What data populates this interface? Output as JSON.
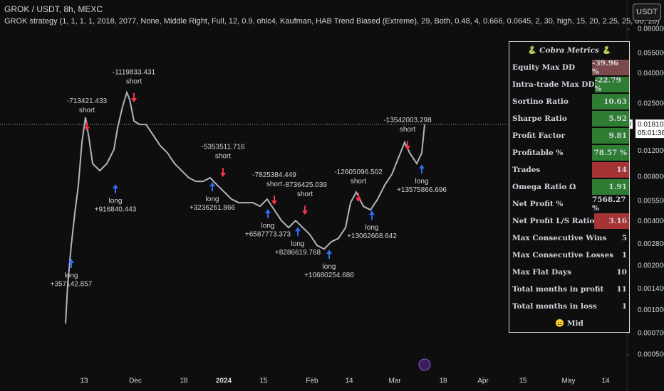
{
  "header": {
    "symbol": "GROK / USDT, 8h, MEXC",
    "strategy": "GROK strategy (1, 1, 1, 1, 2018, 2077, None, Middle Right, Full, 12, 0.9, ohlc4, Kaufman, HAB Trend Biased (Extreme), 29, Both, 0.48, 4, 0.666, 0.0645, 2, 30, high, 15, 20, 2.25, 25, 80, 20)",
    "currency_button": "USDT"
  },
  "chart_data": {
    "type": "line",
    "log_scale": true,
    "x": [
      -6.5,
      -5.75,
      -4.5,
      -3.25,
      -2,
      -0.75,
      0.5,
      1.75,
      3,
      5.5,
      8,
      10.5,
      11.75,
      13.5,
      15,
      16,
      17.5,
      19.5,
      21.75,
      24.25,
      26.75,
      29.25,
      31.75,
      34.25,
      36.75,
      39.25,
      41.75,
      44.25,
      46.75,
      49.25,
      51.75,
      54.25,
      56.75,
      59.25,
      61.75,
      64.25,
      66.75,
      69.25,
      71.75,
      74.25,
      76.75,
      79.25,
      81.75,
      84.25,
      86.75,
      89.25,
      91.75,
      93.5,
      95.5,
      98,
      100.5,
      103,
      105.5,
      108,
      110.5,
      112.5,
      114.25,
      116.75,
      118.5,
      119.5
    ],
    "series": [
      {
        "name": "GROKUSDT",
        "color": "#b2b5be",
        "values": [
          0.000812,
          0.00149,
          0.00275,
          0.00454,
          0.00704,
          0.01372,
          0.0202,
          0.01451,
          0.00985,
          0.00881,
          0.00985,
          0.01228,
          0.01713,
          0.0239,
          0.0298,
          0.0267,
          0.01914,
          0.0181,
          0.0181,
          0.01534,
          0.01298,
          0.01162,
          0.00985,
          0.00881,
          0.00789,
          0.00746,
          0.00746,
          0.00789,
          0.00704,
          0.00631,
          0.00565,
          0.00535,
          0.00535,
          0.00535,
          0.00506,
          0.00565,
          0.00478,
          0.00405,
          0.00363,
          0.00405,
          0.00363,
          0.00325,
          0.00275,
          0.0026,
          0.00291,
          0.00307,
          0.00363,
          0.00535,
          0.00631,
          0.00506,
          0.00478,
          0.00565,
          0.00704,
          0.00833,
          0.01099,
          0.01372,
          0.01162,
          0.00985,
          0.01162,
          0.0181
        ]
      }
    ],
    "xlim": [
      -29.5,
      188
    ],
    "xticks": [
      {
        "value": 0,
        "label": "13"
      },
      {
        "value": 18,
        "label": "Dec"
      },
      {
        "value": 35,
        "label": "18"
      },
      {
        "value": 49,
        "label": "2024"
      },
      {
        "value": 63,
        "label": "15"
      },
      {
        "value": 80,
        "label": "Feb"
      },
      {
        "value": 93,
        "label": "14"
      },
      {
        "value": 109,
        "label": "Mar"
      },
      {
        "value": 126,
        "label": "18"
      },
      {
        "value": 140,
        "label": "Apr"
      },
      {
        "value": 154,
        "label": "15"
      },
      {
        "value": 170,
        "label": "May"
      },
      {
        "value": 183,
        "label": "14"
      }
    ],
    "ylim": [
      0.000355,
      0.126
    ],
    "yticks": [
      {
        "value": 0.08,
        "label": "0.080000"
      },
      {
        "value": 0.055,
        "label": "0.055000"
      },
      {
        "value": 0.04,
        "label": "0.040000"
      },
      {
        "value": 0.025,
        "label": "0.025000"
      },
      {
        "value": 0.012,
        "label": "0.012000"
      },
      {
        "value": 0.008,
        "label": "0.008000"
      },
      {
        "value": 0.0055,
        "label": "0.005500"
      },
      {
        "value": 0.004,
        "label": "0.004000"
      },
      {
        "value": 0.0028,
        "label": "0.002800"
      },
      {
        "value": 0.002,
        "label": "0.002000"
      },
      {
        "value": 0.0014,
        "label": "0.001400"
      },
      {
        "value": 0.001,
        "label": "0.001000"
      },
      {
        "value": 0.0007,
        "label": "0.000700"
      },
      {
        "value": 0.0005,
        "label": "0.000500"
      }
    ],
    "last_price": 0.018103,
    "last_price_tag": "GROKUSDT",
    "last_price_timer": "05:01:36",
    "trades": [
      {
        "side": "long",
        "label": "+357142.857",
        "x": -4.5,
        "y": 0.00209
      },
      {
        "side": "short",
        "label": "-713421.433",
        "x": 1,
        "y": 0.0175
      },
      {
        "side": "long",
        "label": "+916840.443",
        "x": 11,
        "y": 0.00668
      },
      {
        "side": "short",
        "label": "-1119833.431",
        "x": 17.5,
        "y": 0.0273
      },
      {
        "side": "long",
        "label": "+3236261.866",
        "x": 45,
        "y": 0.0069
      },
      {
        "side": "short",
        "label": "-5353511.716",
        "x": 48.75,
        "y": 0.00853
      },
      {
        "side": "long",
        "label": "+6587773.373",
        "x": 64.5,
        "y": 0.00454
      },
      {
        "side": "short",
        "label": "-7825384.449",
        "x": 66.75,
        "y": 0.00553
      },
      {
        "side": "long",
        "label": "+8286619.768",
        "x": 75,
        "y": 0.00343
      },
      {
        "side": "short",
        "label": "-8736425.039",
        "x": 77.5,
        "y": 0.00473
      },
      {
        "side": "long",
        "label": "+10680254.686",
        "x": 86,
        "y": 0.00241
      },
      {
        "side": "short",
        "label": "-12605096.502",
        "x": 96.25,
        "y": 0.00578
      },
      {
        "side": "long",
        "label": "+13062668.642",
        "x": 101,
        "y": 0.00443
      },
      {
        "side": "short",
        "label": "-13542003.298",
        "x": 113.5,
        "y": 0.01298
      },
      {
        "side": "long",
        "label": "+13575866.696",
        "x": 118.5,
        "y": 0.0091
      }
    ]
  },
  "table": {
    "title": "🐍 Cobra Metrics 🐍",
    "rows": [
      [
        "Equity Max DD",
        "-39.96 %",
        "#7c4a4d"
      ],
      [
        "Intra-trade Max DD",
        "-22.79 %",
        "#2e7d32"
      ],
      [
        "Sortino Ratio",
        "10.63",
        "#2e7d32"
      ],
      [
        "Sharpe Ratio",
        "5.92",
        "#2e7d32"
      ],
      [
        "Profit Factor",
        "9.81",
        "#2e7d32"
      ],
      [
        "Profitable %",
        "78.57 %",
        "#2e7d32"
      ],
      [
        "Trades",
        "14",
        "#a63434"
      ],
      [
        "Omega Ratio Ω",
        "1.91",
        "#2e7d32"
      ],
      [
        "Net Profit %",
        "7568.27 %",
        null
      ],
      [
        "Net Profit L/S Ratio",
        "3.16",
        "#a63434"
      ],
      [
        "Max Consecutive Wins",
        "5",
        null
      ],
      [
        "Max Consecutive Losses",
        "1",
        null
      ],
      [
        "Max Flat Days",
        "10",
        null
      ],
      [
        "Total months in profit",
        "11",
        null
      ],
      [
        "Total months in loss",
        "1",
        null
      ]
    ],
    "footer": "😐 Mid"
  }
}
